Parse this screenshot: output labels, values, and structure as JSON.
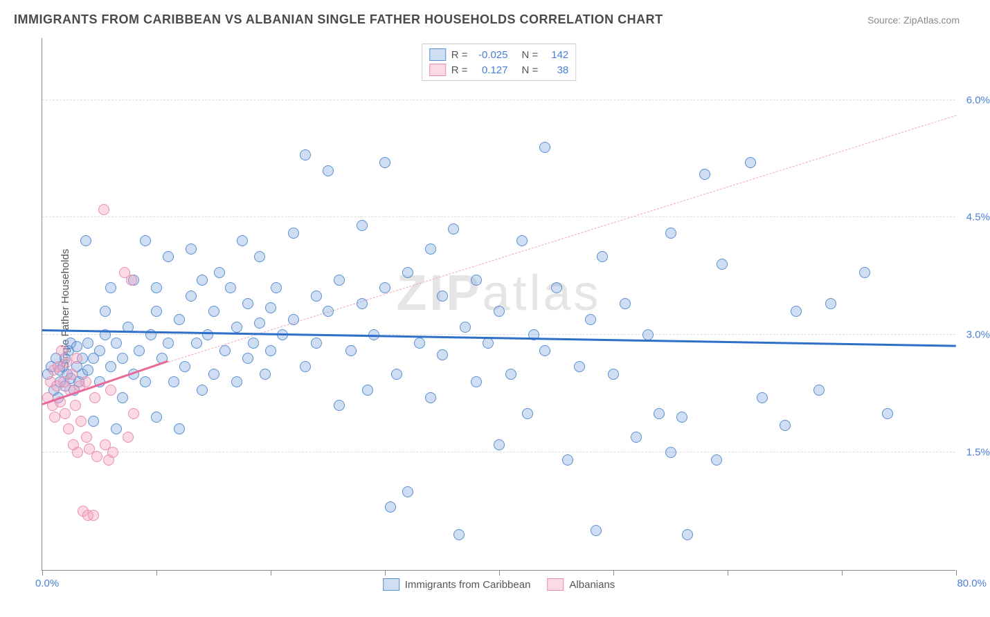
{
  "header": {
    "title": "IMMIGRANTS FROM CARIBBEAN VS ALBANIAN SINGLE FATHER HOUSEHOLDS CORRELATION CHART",
    "source": "Source: ZipAtlas.com"
  },
  "chart": {
    "type": "scatter",
    "ylabel": "Single Father Households",
    "xlim": [
      0,
      80
    ],
    "ylim": [
      0,
      6.8
    ],
    "xaxis_labels": {
      "min": "0.0%",
      "max": "80.0%"
    },
    "yticks": [
      {
        "v": 1.5,
        "label": "1.5%"
      },
      {
        "v": 3.0,
        "label": "3.0%"
      },
      {
        "v": 4.5,
        "label": "4.5%"
      },
      {
        "v": 6.0,
        "label": "6.0%"
      }
    ],
    "xtick_positions": [
      0,
      10,
      20,
      30,
      40,
      50,
      60,
      70,
      80
    ],
    "axis_label_color": "#4a7fd8",
    "grid_color": "#dddddd",
    "background_color": "#ffffff",
    "watermark": {
      "bold": "ZIP",
      "light": "atlas"
    },
    "series": [
      {
        "name": "Immigrants from Caribbean",
        "fill": "rgba(120,160,220,0.35)",
        "stroke": "#5a8fd0",
        "marker_radius": 8,
        "trend": {
          "x1": 0,
          "y1": 3.05,
          "x2": 80,
          "y2": 2.85,
          "color": "#2e6fc9",
          "width": 3,
          "dash": "solid"
        },
        "trend_ext": null,
        "stats": {
          "R": "-0.025",
          "N": "142"
        },
        "points": [
          [
            0.5,
            2.5
          ],
          [
            0.8,
            2.6
          ],
          [
            1.0,
            2.3
          ],
          [
            1.2,
            2.7
          ],
          [
            1.4,
            2.2
          ],
          [
            1.5,
            2.55
          ],
          [
            1.6,
            2.4
          ],
          [
            1.8,
            2.6
          ],
          [
            2.0,
            2.35
          ],
          [
            2.0,
            2.7
          ],
          [
            2.2,
            2.5
          ],
          [
            2.3,
            2.8
          ],
          [
            2.5,
            2.45
          ],
          [
            2.5,
            2.9
          ],
          [
            2.8,
            2.3
          ],
          [
            3.0,
            2.6
          ],
          [
            3.0,
            2.85
          ],
          [
            3.2,
            2.4
          ],
          [
            3.5,
            2.7
          ],
          [
            3.5,
            2.5
          ],
          [
            3.8,
            4.2
          ],
          [
            4.0,
            2.55
          ],
          [
            4.0,
            2.9
          ],
          [
            4.5,
            2.7
          ],
          [
            4.5,
            1.9
          ],
          [
            5.0,
            2.8
          ],
          [
            5.0,
            2.4
          ],
          [
            5.5,
            3.0
          ],
          [
            5.5,
            3.3
          ],
          [
            6.0,
            2.6
          ],
          [
            6.0,
            3.6
          ],
          [
            6.5,
            2.9
          ],
          [
            6.5,
            1.8
          ],
          [
            7.0,
            2.7
          ],
          [
            7.0,
            2.2
          ],
          [
            7.5,
            3.1
          ],
          [
            8.0,
            3.7
          ],
          [
            8.0,
            2.5
          ],
          [
            8.5,
            2.8
          ],
          [
            9.0,
            4.2
          ],
          [
            9.0,
            2.4
          ],
          [
            9.5,
            3.0
          ],
          [
            10.0,
            3.3
          ],
          [
            10.0,
            1.95
          ],
          [
            10.0,
            3.6
          ],
          [
            10.5,
            2.7
          ],
          [
            11.0,
            2.9
          ],
          [
            11.0,
            4.0
          ],
          [
            11.5,
            2.4
          ],
          [
            12.0,
            3.2
          ],
          [
            12.0,
            1.8
          ],
          [
            12.5,
            2.6
          ],
          [
            13.0,
            3.5
          ],
          [
            13.0,
            4.1
          ],
          [
            13.5,
            2.9
          ],
          [
            14.0,
            2.3
          ],
          [
            14.0,
            3.7
          ],
          [
            14.5,
            3.0
          ],
          [
            15.0,
            3.3
          ],
          [
            15.0,
            2.5
          ],
          [
            15.5,
            3.8
          ],
          [
            16.0,
            2.8
          ],
          [
            16.5,
            3.6
          ],
          [
            17.0,
            2.4
          ],
          [
            17.0,
            3.1
          ],
          [
            17.5,
            4.2
          ],
          [
            18.0,
            2.7
          ],
          [
            18.0,
            3.4
          ],
          [
            18.5,
            2.9
          ],
          [
            19.0,
            3.15
          ],
          [
            19.0,
            4.0
          ],
          [
            19.5,
            2.5
          ],
          [
            20.0,
            3.35
          ],
          [
            20.0,
            2.8
          ],
          [
            20.5,
            3.6
          ],
          [
            21.0,
            3.0
          ],
          [
            22.0,
            3.2
          ],
          [
            22.0,
            4.3
          ],
          [
            23.0,
            2.6
          ],
          [
            23.0,
            5.3
          ],
          [
            24.0,
            3.5
          ],
          [
            24.0,
            2.9
          ],
          [
            25.0,
            5.1
          ],
          [
            25.0,
            3.3
          ],
          [
            26.0,
            2.1
          ],
          [
            26.0,
            3.7
          ],
          [
            27.0,
            2.8
          ],
          [
            28.0,
            3.4
          ],
          [
            28.0,
            4.4
          ],
          [
            28.5,
            2.3
          ],
          [
            29.0,
            3.0
          ],
          [
            30.0,
            3.6
          ],
          [
            30.0,
            5.2
          ],
          [
            30.5,
            0.8
          ],
          [
            31.0,
            2.5
          ],
          [
            32.0,
            3.8
          ],
          [
            32.0,
            1.0
          ],
          [
            33.0,
            2.9
          ],
          [
            34.0,
            4.1
          ],
          [
            34.0,
            2.2
          ],
          [
            35.0,
            3.5
          ],
          [
            35.0,
            2.75
          ],
          [
            36.0,
            4.35
          ],
          [
            36.5,
            0.45
          ],
          [
            37.0,
            3.1
          ],
          [
            38.0,
            2.4
          ],
          [
            38.0,
            3.7
          ],
          [
            39.0,
            2.9
          ],
          [
            40.0,
            3.3
          ],
          [
            40.0,
            1.6
          ],
          [
            41.0,
            2.5
          ],
          [
            42.0,
            4.2
          ],
          [
            42.5,
            2.0
          ],
          [
            43.0,
            3.0
          ],
          [
            44.0,
            5.4
          ],
          [
            44.0,
            2.8
          ],
          [
            45.0,
            3.6
          ],
          [
            46.0,
            1.4
          ],
          [
            47.0,
            2.6
          ],
          [
            48.0,
            3.2
          ],
          [
            48.5,
            0.5
          ],
          [
            49.0,
            4.0
          ],
          [
            50.0,
            2.5
          ],
          [
            51.0,
            3.4
          ],
          [
            52.0,
            1.7
          ],
          [
            53.0,
            3.0
          ],
          [
            54.0,
            2.0
          ],
          [
            55.0,
            4.3
          ],
          [
            55.0,
            1.5
          ],
          [
            56.0,
            1.95
          ],
          [
            56.5,
            0.45
          ],
          [
            58.0,
            5.05
          ],
          [
            59.0,
            1.4
          ],
          [
            59.5,
            3.9
          ],
          [
            62.0,
            5.2
          ],
          [
            63.0,
            2.2
          ],
          [
            65.0,
            1.85
          ],
          [
            66.0,
            3.3
          ],
          [
            68.0,
            2.3
          ],
          [
            69.0,
            3.4
          ],
          [
            72.0,
            3.8
          ],
          [
            74.0,
            2.0
          ]
        ]
      },
      {
        "name": "Albanians",
        "fill": "rgba(245,160,190,0.4)",
        "stroke": "#e88fb0",
        "marker_radius": 8,
        "trend": {
          "x1": 0,
          "y1": 2.1,
          "x2": 11,
          "y2": 2.65,
          "color": "#e86a99",
          "width": 3,
          "dash": "solid"
        },
        "trend_ext": {
          "x1": 11,
          "y1": 2.65,
          "x2": 80,
          "y2": 5.8,
          "color": "#f0a5bf",
          "width": 1.5,
          "dash": "dashed"
        },
        "stats": {
          "R": "0.127",
          "N": "38"
        },
        "points": [
          [
            0.5,
            2.2
          ],
          [
            0.7,
            2.4
          ],
          [
            0.9,
            2.1
          ],
          [
            1.0,
            2.55
          ],
          [
            1.1,
            1.95
          ],
          [
            1.3,
            2.35
          ],
          [
            1.4,
            2.6
          ],
          [
            1.6,
            2.15
          ],
          [
            1.7,
            2.8
          ],
          [
            1.9,
            2.4
          ],
          [
            2.0,
            2.0
          ],
          [
            2.1,
            2.65
          ],
          [
            2.3,
            1.8
          ],
          [
            2.4,
            2.3
          ],
          [
            2.6,
            2.5
          ],
          [
            2.7,
            1.6
          ],
          [
            2.9,
            2.1
          ],
          [
            3.0,
            2.7
          ],
          [
            3.1,
            1.5
          ],
          [
            3.3,
            2.35
          ],
          [
            3.4,
            1.9
          ],
          [
            3.6,
            0.75
          ],
          [
            3.8,
            2.4
          ],
          [
            3.9,
            1.7
          ],
          [
            4.0,
            0.7
          ],
          [
            4.1,
            1.55
          ],
          [
            4.5,
            0.7
          ],
          [
            4.6,
            2.2
          ],
          [
            4.8,
            1.45
          ],
          [
            5.4,
            4.6
          ],
          [
            5.5,
            1.6
          ],
          [
            5.8,
            1.4
          ],
          [
            6.0,
            2.3
          ],
          [
            6.2,
            1.5
          ],
          [
            7.2,
            3.8
          ],
          [
            7.5,
            1.7
          ],
          [
            7.8,
            3.7
          ],
          [
            8.0,
            2.0
          ]
        ]
      }
    ],
    "legend_top": {
      "R_label": "R =",
      "N_label": "N ="
    },
    "legend_bottom": [
      {
        "label": "Immigrants from Caribbean",
        "fill": "rgba(120,160,220,0.35)",
        "stroke": "#5a8fd0"
      },
      {
        "label": "Albanians",
        "fill": "rgba(245,160,190,0.4)",
        "stroke": "#e88fb0"
      }
    ]
  }
}
